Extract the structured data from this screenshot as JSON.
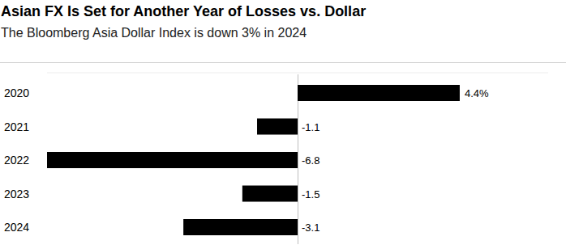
{
  "chart_data": {
    "type": "bar",
    "title": "Asian FX Is Set for Another Year of Losses vs. Dollar",
    "subtitle": "The Bloomberg Asia Dollar Index is down 3% in 2024",
    "categories": [
      "2020",
      "2021",
      "2022",
      "2023",
      "2024"
    ],
    "values": [
      4.4,
      -1.1,
      -6.8,
      -1.5,
      -3.1
    ],
    "value_labels": [
      "4.4%",
      "-1.1",
      "-6.8",
      "-1.5",
      "-3.1"
    ],
    "color": "#000000",
    "orientation": "horizontal",
    "data_labels": true,
    "tick_labels": "y",
    "grid": false,
    "xlim": [
      -6.8,
      6.8
    ]
  }
}
